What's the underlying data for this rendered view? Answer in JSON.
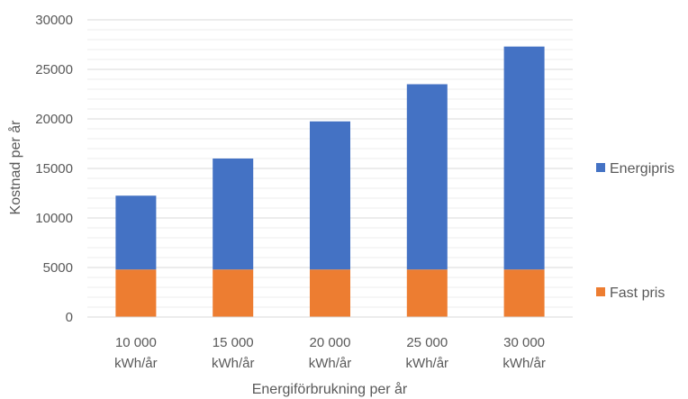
{
  "chart_data": {
    "type": "bar",
    "stacked": true,
    "title": "",
    "xlabel": "Energiförbrukning per år",
    "ylabel": "Kostnad per år",
    "ylim": [
      0,
      30000
    ],
    "yticks": [
      "0",
      "5000",
      "10000",
      "15000",
      "20000",
      "25000",
      "30000"
    ],
    "categories": [
      [
        "10 000",
        "kWh/år"
      ],
      [
        "15 000",
        "kWh/år"
      ],
      [
        "20 000",
        "kWh/år"
      ],
      [
        "25 000",
        "kWh/år"
      ],
      [
        "30 000",
        "kWh/år"
      ]
    ],
    "series": [
      {
        "name": "Fast pris",
        "color": "#ED7D31",
        "values": [
          4800,
          4800,
          4800,
          4800,
          4800
        ]
      },
      {
        "name": "Energipris",
        "color": "#4472C4",
        "values": [
          7450,
          11200,
          14950,
          18700,
          22500
        ]
      }
    ],
    "grid": true,
    "legend": "right"
  }
}
